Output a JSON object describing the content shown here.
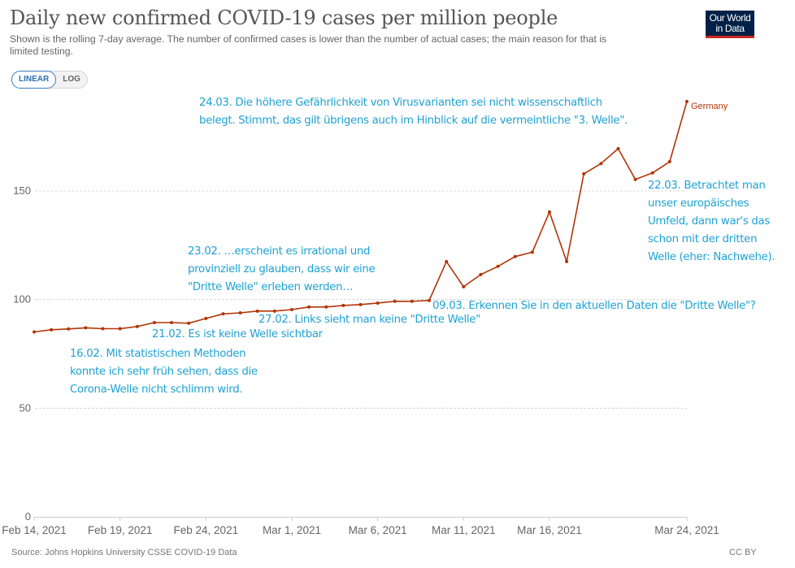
{
  "header": {
    "title": "Daily new confirmed COVID-19 cases per million people",
    "subtitle": "Shown is the rolling 7-day average. The number of confirmed cases is lower than the number of actual cases; the main reason for that is limited testing.",
    "logo_line1": "Our World",
    "logo_line2": "in Data",
    "colors": {
      "logo_bg": "#002147",
      "logo_stripe": "#ce261e"
    }
  },
  "scale_toggle": {
    "linear_label": "LINEAR",
    "log_label": "LOG",
    "selected": "LINEAR"
  },
  "footer": {
    "source": "Source: Johns Hopkins University CSSE COVID-19 Data",
    "license": "CC BY"
  },
  "annotations": {
    "a1603": [
      "16.02. Mit statistischen Methoden",
      "konnte ich sehr früh sehen, dass die",
      "Corona-Welle nicht schlimm wird."
    ],
    "a2102": [
      "21.02. Es ist keine Welle sichtbar"
    ],
    "a2302": [
      "23.02. …erscheint es irrational und",
      "provinziell zu glauben, dass wir eine",
      "\"Dritte Welle\" erleben werden…"
    ],
    "a2702": [
      "27.02. Links sieht man keine \"Dritte Welle\""
    ],
    "a0903": [
      "09.03. Erkennen Sie in den aktuellen Daten die \"Dritte Welle\"?"
    ],
    "a2203": [
      "22.03. Betrachtet man",
      "unser europäisches",
      "Umfeld, dann war's das",
      "schon mit der dritten",
      "Welle (eher: Nachwehe)."
    ],
    "a2403": [
      "24.03. Die höhere Gefährlichkeit von Virusvarianten sei nicht wissenschaftlich",
      "belegt. Stimmt, das gilt übrigens auch im Hinblick auf die vermeintliche \"3. Welle\"."
    ],
    "color": "#1ea2d4"
  },
  "chart_data": {
    "type": "line",
    "title": "Daily new confirmed COVID-19 cases per million people",
    "xlabel": "",
    "ylabel": "",
    "ylim": [
      0,
      200
    ],
    "yticks": [
      0,
      50,
      100,
      150
    ],
    "ytick_labels": [
      "0",
      "50",
      "100",
      "150"
    ],
    "grid": "horizontal-dotted",
    "xtick_labels": [
      "Feb 14, 2021",
      "Feb 19, 2021",
      "Feb 24, 2021",
      "Mar 1, 2021",
      "Mar 6, 2021",
      "Mar 11, 2021",
      "Mar 16, 2021",
      "Mar 24, 2021"
    ],
    "xtick_index": [
      0,
      5,
      10,
      15,
      20,
      25,
      30,
      38
    ],
    "legend": "end-of-line label",
    "x": [
      "2021-02-14",
      "2021-02-15",
      "2021-02-16",
      "2021-02-17",
      "2021-02-18",
      "2021-02-19",
      "2021-02-20",
      "2021-02-21",
      "2021-02-22",
      "2021-02-23",
      "2021-02-24",
      "2021-02-25",
      "2021-02-26",
      "2021-02-27",
      "2021-02-28",
      "2021-03-01",
      "2021-03-02",
      "2021-03-03",
      "2021-03-04",
      "2021-03-05",
      "2021-03-06",
      "2021-03-07",
      "2021-03-08",
      "2021-03-09",
      "2021-03-10",
      "2021-03-11",
      "2021-03-12",
      "2021-03-13",
      "2021-03-14",
      "2021-03-15",
      "2021-03-16",
      "2021-03-17",
      "2021-03-18",
      "2021-03-19",
      "2021-03-20",
      "2021-03-21",
      "2021-03-22",
      "2021-03-23",
      "2021-03-24"
    ],
    "series": [
      {
        "name": "Germany",
        "color": "#b13507",
        "values": [
          85.1,
          86.1,
          86.5,
          87.0,
          86.6,
          86.6,
          87.6,
          89.4,
          89.4,
          89.1,
          91.3,
          93.4,
          93.9,
          94.7,
          94.7,
          95.4,
          96.6,
          96.6,
          97.3,
          97.7,
          98.4,
          99.2,
          99.2,
          99.6,
          117.5,
          105.9,
          111.5,
          115.3,
          119.8,
          121.8,
          140.3,
          117.5,
          157.9,
          162.6,
          169.5,
          155.3,
          158.3,
          163.5,
          191.2
        ]
      }
    ]
  }
}
